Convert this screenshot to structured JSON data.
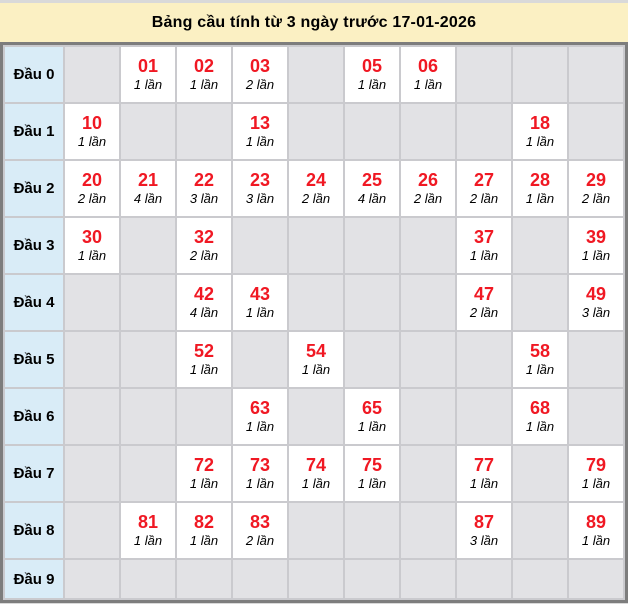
{
  "header": {
    "title": "Bảng cầu tính từ 3 ngày trước 17-01-2026"
  },
  "colors": {
    "title_bg": "#fbf0c3",
    "label_bg": "#d9ecf7",
    "empty_cell_bg": "#e2e2e5",
    "filled_cell_bg": "#ffffff",
    "number_red": "#f01823",
    "outer_border": "#7d7d7d",
    "grid_border": "#cacace",
    "page_bg": "#d9d9d9"
  },
  "table": {
    "digit_columns": 10,
    "rows": [
      {
        "label": "Đầu 0",
        "cells": [
          null,
          {
            "number": "01",
            "times": "1 lần"
          },
          {
            "number": "02",
            "times": "1 lần"
          },
          {
            "number": "03",
            "times": "2 lần"
          },
          null,
          {
            "number": "05",
            "times": "1 lần"
          },
          {
            "number": "06",
            "times": "1 lần"
          },
          null,
          null,
          null
        ]
      },
      {
        "label": "Đầu 1",
        "cells": [
          {
            "number": "10",
            "times": "1 lần"
          },
          null,
          null,
          {
            "number": "13",
            "times": "1 lần"
          },
          null,
          null,
          null,
          null,
          {
            "number": "18",
            "times": "1 lần"
          },
          null
        ]
      },
      {
        "label": "Đầu 2",
        "cells": [
          {
            "number": "20",
            "times": "2 lần"
          },
          {
            "number": "21",
            "times": "4 lần"
          },
          {
            "number": "22",
            "times": "3 lần"
          },
          {
            "number": "23",
            "times": "3 lần"
          },
          {
            "number": "24",
            "times": "2 lần"
          },
          {
            "number": "25",
            "times": "4 lần"
          },
          {
            "number": "26",
            "times": "2 lần"
          },
          {
            "number": "27",
            "times": "2 lần"
          },
          {
            "number": "28",
            "times": "1 lần"
          },
          {
            "number": "29",
            "times": "2 lần"
          }
        ]
      },
      {
        "label": "Đầu 3",
        "cells": [
          {
            "number": "30",
            "times": "1 lần"
          },
          null,
          {
            "number": "32",
            "times": "2 lần"
          },
          null,
          null,
          null,
          null,
          {
            "number": "37",
            "times": "1 lần"
          },
          null,
          {
            "number": "39",
            "times": "1 lần"
          }
        ]
      },
      {
        "label": "Đầu 4",
        "cells": [
          null,
          null,
          {
            "number": "42",
            "times": "4 lần"
          },
          {
            "number": "43",
            "times": "1 lần"
          },
          null,
          null,
          null,
          {
            "number": "47",
            "times": "2 lần"
          },
          null,
          {
            "number": "49",
            "times": "3 lần"
          }
        ]
      },
      {
        "label": "Đầu 5",
        "cells": [
          null,
          null,
          {
            "number": "52",
            "times": "1 lần"
          },
          null,
          {
            "number": "54",
            "times": "1 lần"
          },
          null,
          null,
          null,
          {
            "number": "58",
            "times": "1 lần"
          },
          null
        ]
      },
      {
        "label": "Đầu 6",
        "cells": [
          null,
          null,
          null,
          {
            "number": "63",
            "times": "1 lần"
          },
          null,
          {
            "number": "65",
            "times": "1 lần"
          },
          null,
          null,
          {
            "number": "68",
            "times": "1 lần"
          },
          null
        ]
      },
      {
        "label": "Đầu 7",
        "cells": [
          null,
          null,
          {
            "number": "72",
            "times": "1 lần"
          },
          {
            "number": "73",
            "times": "1 lần"
          },
          {
            "number": "74",
            "times": "1 lần"
          },
          {
            "number": "75",
            "times": "1 lần"
          },
          null,
          {
            "number": "77",
            "times": "1 lần"
          },
          null,
          {
            "number": "79",
            "times": "1 lần"
          }
        ]
      },
      {
        "label": "Đầu 8",
        "cells": [
          null,
          {
            "number": "81",
            "times": "1 lần"
          },
          {
            "number": "82",
            "times": "1 lần"
          },
          {
            "number": "83",
            "times": "2 lần"
          },
          null,
          null,
          null,
          {
            "number": "87",
            "times": "3 lần"
          },
          null,
          {
            "number": "89",
            "times": "1 lần"
          }
        ]
      },
      {
        "label": "Đầu 9",
        "cells": [
          null,
          null,
          null,
          null,
          null,
          null,
          null,
          null,
          null,
          null
        ]
      }
    ]
  }
}
